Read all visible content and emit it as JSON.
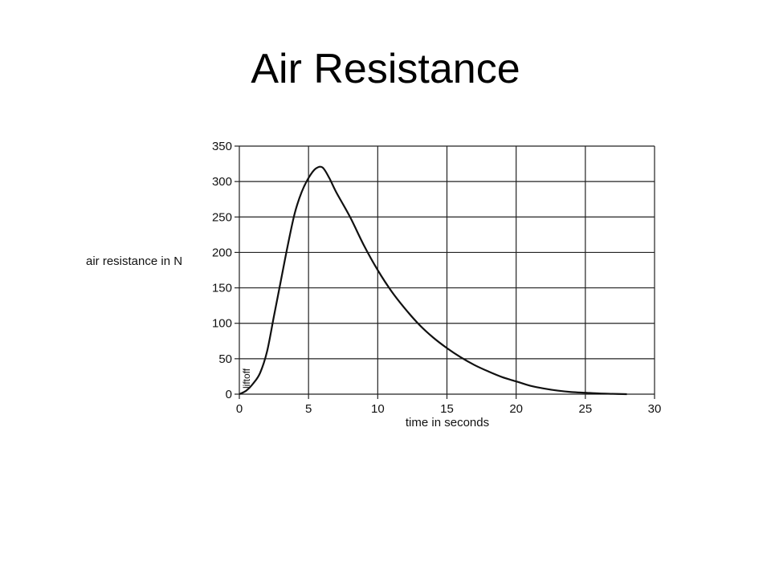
{
  "slide": {
    "title": "Air Resistance"
  },
  "chart_data": {
    "type": "line",
    "title": "",
    "xlabel": "time in seconds",
    "ylabel": "air resistance in N",
    "xlim": [
      0,
      30
    ],
    "ylim": [
      0,
      350
    ],
    "xticks": [
      0,
      5,
      10,
      15,
      20,
      25,
      30
    ],
    "yticks": [
      0,
      50,
      100,
      150,
      200,
      250,
      300,
      350
    ],
    "grid": true,
    "annotations": [
      {
        "text": "liftoff",
        "x": 0.4,
        "y": 0
      }
    ],
    "series": [
      {
        "x": [
          0,
          0.5,
          1,
          1.5,
          2,
          2.5,
          3,
          3.5,
          4,
          4.5,
          5,
          5.5,
          6,
          6.5,
          7,
          8,
          9,
          10,
          11,
          12,
          13,
          14,
          15,
          16,
          17,
          18,
          19,
          20,
          21,
          22,
          23,
          24,
          25,
          26,
          27,
          28
        ],
        "y": [
          0,
          5,
          15,
          30,
          60,
          110,
          160,
          210,
          255,
          285,
          305,
          318,
          320,
          305,
          285,
          250,
          210,
          175,
          145,
          120,
          98,
          80,
          65,
          52,
          41,
          32,
          24,
          18,
          12,
          8,
          5,
          3,
          2,
          1,
          0.5,
          0
        ],
        "color": "#111111"
      }
    ]
  }
}
